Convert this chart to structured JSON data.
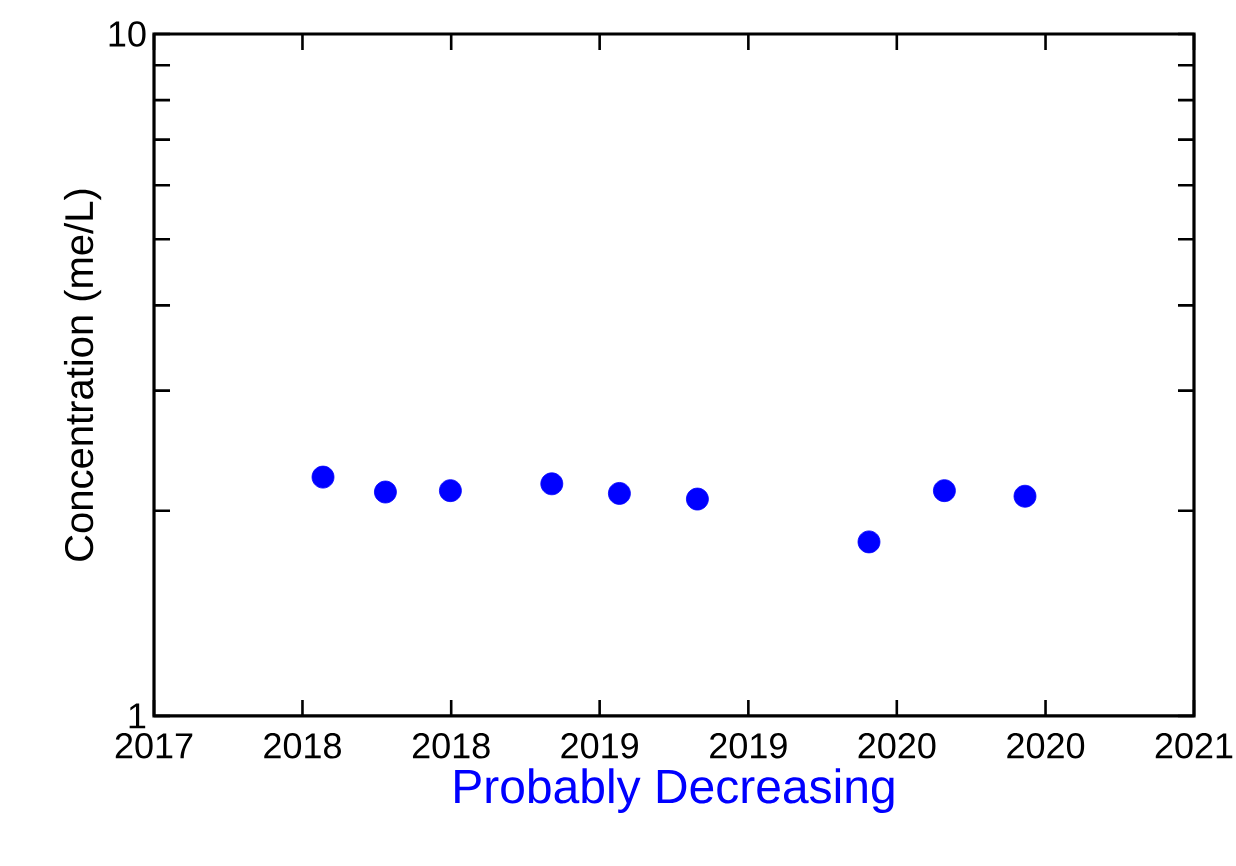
{
  "chart_data": {
    "type": "scatter",
    "xlabel": "Probably Decreasing",
    "ylabel": "Concentration (me/L)",
    "x": [
      2017.65,
      2017.89,
      2018.14,
      2018.53,
      2018.79,
      2019.09,
      2019.75,
      2020.04,
      2020.35
    ],
    "values": [
      2.24,
      2.13,
      2.14,
      2.19,
      2.12,
      2.08,
      1.8,
      2.14,
      2.1
    ],
    "color": "#0000ff",
    "marker": "circle",
    "log": "y",
    "xlim": [
      2017,
      2021
    ],
    "xticks": [
      2017,
      {
        "value": 2017.571,
        "label": "2018"
      },
      {
        "value": 2018.143,
        "label": "2018"
      },
      {
        "value": 2018.714,
        "label": "2019"
      },
      {
        "value": 2019.286,
        "label": "2019"
      },
      {
        "value": 2019.857,
        "label": "2020"
      },
      {
        "value": 2020.429,
        "label": "2020"
      },
      2021
    ],
    "ylim": [
      1,
      10
    ],
    "yticks": [
      1,
      {
        "value": 2,
        "label": null
      },
      {
        "value": 3,
        "label": null
      },
      {
        "value": 4,
        "label": null
      },
      {
        "value": 5,
        "label": null
      },
      {
        "value": 6,
        "label": null
      },
      {
        "value": 7,
        "label": null
      },
      {
        "value": 8,
        "label": null
      },
      {
        "value": 9,
        "label": null
      },
      10
    ],
    "grid": false
  }
}
